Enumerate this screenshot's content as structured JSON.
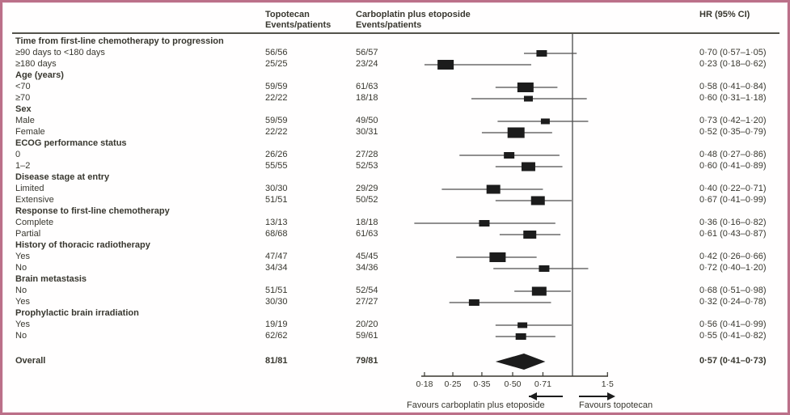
{
  "colors": {
    "text": "#38372f",
    "marker": "#1c1c1c",
    "ci_line": "#4d4d4d",
    "ref_line": "#6b6b6b",
    "axis": "#38372f",
    "border": "#bb7089",
    "header_rule": "#54534c"
  },
  "header": {
    "topotecan": "Topotecan\nEvents/patients",
    "carboplatin": "Carboplatin plus etoposide\nEvents/patients",
    "hr": "HR (95% CI)"
  },
  "chart_data": {
    "type": "forest",
    "scale": "log",
    "ref_line": 1.0,
    "axis_ticks": [
      {
        "value": 0.18,
        "label": "0·18"
      },
      {
        "value": 0.25,
        "label": "0·25"
      },
      {
        "value": 0.35,
        "label": "0·35"
      },
      {
        "value": 0.5,
        "label": "0·50"
      },
      {
        "value": 0.71,
        "label": "0·71"
      },
      {
        "value": 1.5,
        "label": "1·5"
      }
    ],
    "rows": [
      {
        "kind": "group",
        "label": "Time from first-line chemotherapy to progression"
      },
      {
        "kind": "item",
        "label": "≥90 days to <180 days",
        "topotecan": "56/56",
        "carboplatin": "56/57",
        "hr": 0.7,
        "ci_low": 0.57,
        "ci_high": 1.05,
        "hr_text": "0·70 (0·57–1·05)",
        "weight": 13
      },
      {
        "kind": "item",
        "label": "≥180 days",
        "topotecan": "25/25",
        "carboplatin": "23/24",
        "hr": 0.23,
        "ci_low": 0.18,
        "ci_high": 0.62,
        "hr_text": "0·23 (0·18–0·62)",
        "weight": 20
      },
      {
        "kind": "group",
        "label": "Age (years)"
      },
      {
        "kind": "item",
        "label": "<70",
        "topotecan": "59/59",
        "carboplatin": "61/63",
        "hr": 0.58,
        "ci_low": 0.41,
        "ci_high": 0.84,
        "hr_text": "0·58 (0·41–0·84)",
        "weight": 20
      },
      {
        "kind": "item",
        "label": "≥70",
        "topotecan": "22/22",
        "carboplatin": "18/18",
        "hr": 0.6,
        "ci_low": 0.31,
        "ci_high": 1.18,
        "hr_text": "0·60 (0·31–1·18)",
        "weight": 11
      },
      {
        "kind": "group",
        "label": "Sex"
      },
      {
        "kind": "item",
        "label": "Male",
        "topotecan": "59/59",
        "carboplatin": "49/50",
        "hr": 0.73,
        "ci_low": 0.42,
        "ci_high": 1.2,
        "hr_text": "0·73 (0·42–1·20)",
        "weight": 11
      },
      {
        "kind": "item",
        "label": "Female",
        "topotecan": "22/22",
        "carboplatin": "30/31",
        "hr": 0.52,
        "ci_low": 0.35,
        "ci_high": 0.79,
        "hr_text": "0·52 (0·35–0·79)",
        "weight": 21
      },
      {
        "kind": "group",
        "label": "ECOG performance status"
      },
      {
        "kind": "item",
        "label": "0",
        "topotecan": "26/26",
        "carboplatin": "27/28",
        "hr": 0.48,
        "ci_low": 0.27,
        "ci_high": 0.86,
        "hr_text": "0·48 (0·27–0·86)",
        "weight": 13
      },
      {
        "kind": "item",
        "label": "1–2",
        "topotecan": "55/55",
        "carboplatin": "52/53",
        "hr": 0.6,
        "ci_low": 0.41,
        "ci_high": 0.89,
        "hr_text": "0·60 (0·41–0·89)",
        "weight": 17
      },
      {
        "kind": "group",
        "label": "Disease stage at entry"
      },
      {
        "kind": "item",
        "label": "Limited",
        "topotecan": "30/30",
        "carboplatin": "29/29",
        "hr": 0.4,
        "ci_low": 0.22,
        "ci_high": 0.71,
        "hr_text": "0·40 (0·22–0·71)",
        "weight": 17
      },
      {
        "kind": "item",
        "label": "Extensive",
        "topotecan": "51/51",
        "carboplatin": "50/52",
        "hr": 0.67,
        "ci_low": 0.41,
        "ci_high": 0.99,
        "hr_text": "0·67 (0·41–0·99)",
        "weight": 17
      },
      {
        "kind": "group",
        "label": "Response to first-line chemotherapy"
      },
      {
        "kind": "item",
        "label": "Complete",
        "topotecan": "13/13",
        "carboplatin": "18/18",
        "hr": 0.36,
        "ci_low": 0.16,
        "ci_high": 0.82,
        "hr_text": "0·36 (0·16–0·82)",
        "weight": 13
      },
      {
        "kind": "item",
        "label": "Partial",
        "topotecan": "68/68",
        "carboplatin": "61/63",
        "hr": 0.61,
        "ci_low": 0.43,
        "ci_high": 0.87,
        "hr_text": "0·61 (0·43–0·87)",
        "weight": 16
      },
      {
        "kind": "group",
        "label": "History of thoracic radiotherapy"
      },
      {
        "kind": "item",
        "label": "Yes",
        "topotecan": "47/47",
        "carboplatin": "45/45",
        "hr": 0.42,
        "ci_low": 0.26,
        "ci_high": 0.66,
        "hr_text": "0·42 (0·26–0·66)",
        "weight": 20
      },
      {
        "kind": "item",
        "label": "No",
        "topotecan": "34/34",
        "carboplatin": "34/36",
        "hr": 0.72,
        "ci_low": 0.4,
        "ci_high": 1.2,
        "hr_text": "0·72 (0·40–1·20)",
        "weight": 13
      },
      {
        "kind": "group",
        "label": "Brain metastasis"
      },
      {
        "kind": "item",
        "label": "No",
        "topotecan": "51/51",
        "carboplatin": "52/54",
        "hr": 0.68,
        "ci_low": 0.51,
        "ci_high": 0.98,
        "hr_text": "0·68 (0·51–0·98)",
        "weight": 18
      },
      {
        "kind": "item",
        "label": "Yes",
        "topotecan": "30/30",
        "carboplatin": "27/27",
        "hr": 0.32,
        "ci_low": 0.24,
        "ci_high": 0.78,
        "hr_text": "0·32 (0·24–0·78)",
        "weight": 13
      },
      {
        "kind": "group",
        "label": "Prophylactic brain irradiation"
      },
      {
        "kind": "item",
        "label": "Yes",
        "topotecan": "19/19",
        "carboplatin": "20/20",
        "hr": 0.56,
        "ci_low": 0.41,
        "ci_high": 0.99,
        "hr_text": "0·56 (0·41–0·99)",
        "weight": 12
      },
      {
        "kind": "item",
        "label": "No",
        "topotecan": "62/62",
        "carboplatin": "59/61",
        "hr": 0.55,
        "ci_low": 0.41,
        "ci_high": 0.82,
        "hr_text": "0·55 (0·41–0·82)",
        "weight": 13
      }
    ],
    "overall": {
      "kind": "overall",
      "label": "Overall",
      "topotecan": "81/81",
      "carboplatin": "79/81",
      "hr": 0.57,
      "ci_low": 0.41,
      "ci_high": 0.73,
      "hr_text": "0·57 (0·41–0·73)"
    },
    "footer": {
      "left": "Favours carboplatin plus etoposide",
      "right": "Favours topotecan"
    }
  }
}
